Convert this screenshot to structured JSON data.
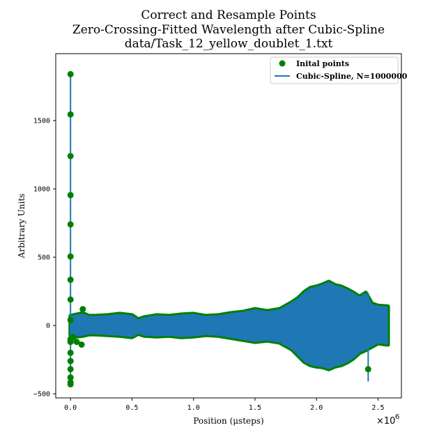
{
  "chart_data": {
    "type": "scatter",
    "title_lines": [
      "Correct and Resample Points",
      "Zero-Crossing-Fitted Wavelength after Cubic-Spline",
      "data/Task_12_yellow_doublet_1.txt"
    ],
    "xlabel": "Position (μsteps)",
    "ylabel": "Arbitrary Units",
    "x_multiplier": "×10",
    "x_multiplier_exp": "6",
    "xlim": [
      -0.12,
      2.69
    ],
    "ylim": [
      -530,
      1990
    ],
    "xticks": [
      {
        "value": 0.0,
        "label": "0.0"
      },
      {
        "value": 0.5,
        "label": "0.5"
      },
      {
        "value": 1.0,
        "label": "1.0"
      },
      {
        "value": 1.5,
        "label": "1.5"
      },
      {
        "value": 2.0,
        "label": "2.0"
      },
      {
        "value": 2.5,
        "label": "2.5"
      }
    ],
    "yticks": [
      {
        "value": -500,
        "label": "−500"
      },
      {
        "value": 0,
        "label": "0"
      },
      {
        "value": 500,
        "label": "500"
      },
      {
        "value": 1000,
        "label": "1000"
      },
      {
        "value": 1500,
        "label": "1500"
      }
    ],
    "legend": {
      "placement": "top-right",
      "entries": [
        {
          "label": "Inital points",
          "marker": "circle",
          "color": "#008000"
        },
        {
          "label": "Cubic-Spline, N=1000000",
          "marker": "line",
          "color": "#1f77b4"
        }
      ]
    },
    "colors": {
      "points": "#008000",
      "spline": "#1f77b4"
    },
    "series": [
      {
        "name": "Inital points",
        "kind": "points",
        "note": "isolated points near the left edge and right end",
        "x": [
          0.0,
          0.0,
          0.0,
          0.0,
          0.0,
          0.0,
          0.0,
          0.0,
          0.0,
          0.0,
          0.0,
          0.0,
          0.0,
          0.0,
          0.0,
          0.0,
          0.0,
          0.02,
          0.05,
          0.09,
          0.1,
          2.42
        ],
        "y": [
          1840,
          1545,
          1240,
          955,
          740,
          505,
          335,
          190,
          40,
          -120,
          -200,
          -260,
          -320,
          -380,
          -415,
          -430,
          -100,
          -85,
          -120,
          -140,
          120,
          -320
        ]
      },
      {
        "name": "Cubic-Spline, N=1000000",
        "kind": "envelope",
        "x": [
          0.0,
          0.05,
          0.1,
          0.15,
          0.2,
          0.3,
          0.4,
          0.5,
          0.55,
          0.6,
          0.7,
          0.8,
          0.9,
          1.0,
          1.1,
          1.2,
          1.3,
          1.4,
          1.5,
          1.6,
          1.7,
          1.8,
          1.85,
          1.9,
          1.95,
          2.0,
          2.05,
          2.1,
          2.15,
          2.2,
          2.25,
          2.3,
          2.35,
          2.4,
          2.45,
          2.5,
          2.58
        ],
        "upper": [
          70,
          80,
          90,
          70,
          70,
          75,
          85,
          75,
          45,
          60,
          75,
          70,
          80,
          85,
          70,
          75,
          90,
          100,
          120,
          105,
          120,
          170,
          200,
          245,
          275,
          285,
          300,
          320,
          295,
          285,
          265,
          240,
          210,
          240,
          160,
          145,
          140
        ],
        "lower": [
          -70,
          -80,
          -75,
          -65,
          -65,
          -70,
          -75,
          -85,
          -60,
          -75,
          -80,
          -75,
          -85,
          -80,
          -70,
          -75,
          -90,
          -105,
          -120,
          -110,
          -125,
          -175,
          -220,
          -265,
          -290,
          -300,
          -305,
          -320,
          -300,
          -290,
          -270,
          -240,
          -200,
          -180,
          -155,
          -130,
          -140
        ]
      },
      {
        "name": "spline-spike",
        "kind": "line",
        "x": [
          0.0,
          0.0
        ],
        "y": [
          -430,
          1840
        ]
      },
      {
        "name": "spline-spike-end",
        "kind": "line",
        "x": [
          2.42,
          2.42
        ],
        "y": [
          -410,
          240
        ]
      }
    ]
  }
}
